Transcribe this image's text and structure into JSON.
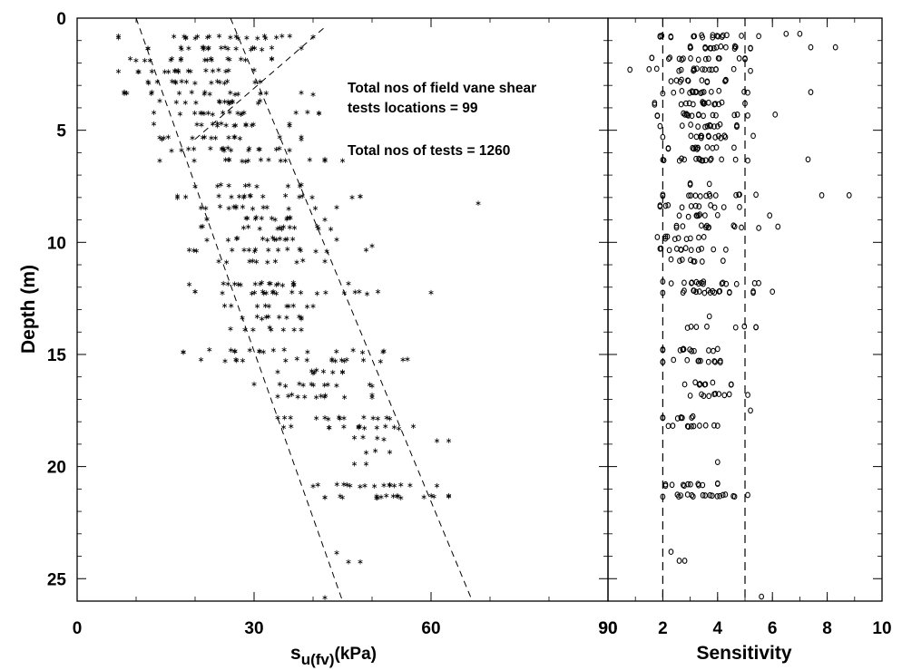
{
  "chart_data": [
    {
      "type": "scatter",
      "panel": "left",
      "xlabel": "s",
      "xlabel_sub": "u(fv)",
      "xlabel_unit": "(kPa)",
      "ylabel": "Depth (m)",
      "xlim": [
        0,
        90
      ],
      "ylim": [
        0,
        26
      ],
      "y_inverted": true,
      "x_ticks": [
        0,
        30,
        60,
        90
      ],
      "y_ticks": [
        0,
        5,
        10,
        15,
        20,
        25
      ],
      "marker": "asterisk",
      "grid": false,
      "annotations": [
        "Total nos of field vane shear",
        "tests locations = 99",
        "Total nos of tests = 1260"
      ],
      "trend_lines": [
        {
          "x1": 10,
          "y1": 0,
          "x2": 45,
          "y2": 26,
          "style": "dashed"
        },
        {
          "x1": 26,
          "y1": 0,
          "x2": 67,
          "y2": 26,
          "style": "dashed"
        },
        {
          "x1": 20,
          "y1": 5.4,
          "x2": 42,
          "y2": 0.4,
          "style": "dashed"
        }
      ],
      "levels": [
        {
          "depth": 0.8,
          "min": 7,
          "max": 40,
          "count": 22
        },
        {
          "depth": 1.3,
          "min": 12,
          "max": 38,
          "count": 20
        },
        {
          "depth": 1.8,
          "min": 9,
          "max": 33,
          "count": 18
        },
        {
          "depth": 2.3,
          "min": 7,
          "max": 30,
          "count": 18
        },
        {
          "depth": 2.8,
          "min": 12,
          "max": 31,
          "count": 16
        },
        {
          "depth": 3.3,
          "min": 8,
          "max": 40,
          "count": 18
        },
        {
          "depth": 3.7,
          "min": 14,
          "max": 31,
          "count": 14
        },
        {
          "depth": 4.2,
          "min": 13,
          "max": 41,
          "count": 18
        },
        {
          "depth": 4.7,
          "min": 13,
          "max": 36,
          "count": 16
        },
        {
          "depth": 5.3,
          "min": 14,
          "max": 38,
          "count": 16
        },
        {
          "depth": 5.8,
          "min": 16,
          "max": 36,
          "count": 18
        },
        {
          "depth": 6.3,
          "min": 14,
          "max": 42,
          "count": 16
        },
        {
          "depth": 7.4,
          "min": 20,
          "max": 38,
          "count": 10
        },
        {
          "depth": 7.9,
          "min": 17,
          "max": 48,
          "count": 18
        },
        {
          "depth": 8.4,
          "min": 21,
          "max": 44,
          "count": 14
        },
        {
          "depth": 8.9,
          "min": 22,
          "max": 42,
          "count": 14
        },
        {
          "depth": 9.3,
          "min": 21,
          "max": 43,
          "count": 14
        },
        {
          "depth": 9.8,
          "min": 22,
          "max": 44,
          "count": 14
        },
        {
          "depth": 10.3,
          "min": 19,
          "max": 49,
          "count": 16
        },
        {
          "depth": 10.8,
          "min": 24,
          "max": 42,
          "count": 10
        },
        {
          "depth": 11.8,
          "min": 19,
          "max": 46,
          "count": 18
        },
        {
          "depth": 12.2,
          "min": 20,
          "max": 51,
          "count": 20
        },
        {
          "depth": 12.8,
          "min": 25,
          "max": 40,
          "count": 10
        },
        {
          "depth": 13.3,
          "min": 28,
          "max": 38,
          "count": 10
        },
        {
          "depth": 13.8,
          "min": 26,
          "max": 38,
          "count": 8
        },
        {
          "depth": 14.8,
          "min": 18,
          "max": 52,
          "count": 18
        },
        {
          "depth": 15.2,
          "min": 21,
          "max": 56,
          "count": 18
        },
        {
          "depth": 15.7,
          "min": 34,
          "max": 45,
          "count": 8
        },
        {
          "depth": 16.3,
          "min": 30,
          "max": 50,
          "count": 12
        },
        {
          "depth": 16.8,
          "min": 34,
          "max": 50,
          "count": 12
        },
        {
          "depth": 17.8,
          "min": 34,
          "max": 53,
          "count": 14
        },
        {
          "depth": 18.2,
          "min": 35,
          "max": 57,
          "count": 14
        },
        {
          "depth": 18.7,
          "min": 47,
          "max": 52,
          "count": 4
        },
        {
          "depth": 19.3,
          "min": 49,
          "max": 53,
          "count": 3
        },
        {
          "depth": 19.8,
          "min": 47,
          "max": 49,
          "count": 2
        },
        {
          "depth": 20.8,
          "min": 40,
          "max": 61,
          "count": 16
        },
        {
          "depth": 21.3,
          "min": 42,
          "max": 63,
          "count": 18
        }
      ],
      "outliers": [
        {
          "x": 68,
          "y": 8.2
        },
        {
          "x": 60,
          "y": 12.2
        },
        {
          "x": 61,
          "y": 18.8
        },
        {
          "x": 63,
          "y": 18.8
        },
        {
          "x": 44,
          "y": 23.8
        },
        {
          "x": 46,
          "y": 24.2
        },
        {
          "x": 48,
          "y": 24.2
        },
        {
          "x": 42,
          "y": 25.8
        },
        {
          "x": 45,
          "y": 6.3
        },
        {
          "x": 50,
          "y": 10.1
        },
        {
          "x": 40,
          "y": 15.8
        }
      ]
    },
    {
      "type": "scatter",
      "panel": "right",
      "xlabel": "Sensitivity",
      "xlim": [
        0,
        10
      ],
      "ylim": [
        0,
        26
      ],
      "y_inverted": true,
      "x_ticks": [
        0,
        2,
        4,
        6,
        8,
        10
      ],
      "x_tick_labels": [
        "90",
        "2",
        "4",
        "6",
        "8",
        "10"
      ],
      "marker": "open-circle",
      "grid": false,
      "reference_lines": [
        {
          "x": 2,
          "style": "dashed"
        },
        {
          "x": 5,
          "style": "dashed"
        }
      ],
      "levels": [
        {
          "depth": 0.8,
          "min": 1.9,
          "max": 5.5,
          "count": 18
        },
        {
          "depth": 1.3,
          "min": 3.0,
          "max": 5.2,
          "count": 16
        },
        {
          "depth": 1.8,
          "min": 1.6,
          "max": 5.0,
          "count": 16
        },
        {
          "depth": 2.3,
          "min": 1.5,
          "max": 5.2,
          "count": 16
        },
        {
          "depth": 2.8,
          "min": 2.3,
          "max": 4.3,
          "count": 12
        },
        {
          "depth": 3.3,
          "min": 2.0,
          "max": 5.1,
          "count": 16
        },
        {
          "depth": 3.8,
          "min": 1.7,
          "max": 5.0,
          "count": 16
        },
        {
          "depth": 4.3,
          "min": 1.8,
          "max": 5.1,
          "count": 16
        },
        {
          "depth": 4.8,
          "min": 1.9,
          "max": 4.7,
          "count": 14
        },
        {
          "depth": 5.3,
          "min": 2.0,
          "max": 5.3,
          "count": 14
        },
        {
          "depth": 5.8,
          "min": 2.2,
          "max": 4.6,
          "count": 12
        },
        {
          "depth": 6.3,
          "min": 2.0,
          "max": 5.1,
          "count": 16
        },
        {
          "depth": 7.4,
          "min": 3.0,
          "max": 3.7,
          "count": 3
        },
        {
          "depth": 7.9,
          "min": 2.0,
          "max": 5.4,
          "count": 14
        },
        {
          "depth": 8.4,
          "min": 1.9,
          "max": 4.8,
          "count": 12
        },
        {
          "depth": 8.8,
          "min": 2.6,
          "max": 4.0,
          "count": 8
        },
        {
          "depth": 9.3,
          "min": 2.5,
          "max": 5.5,
          "count": 12
        },
        {
          "depth": 9.8,
          "min": 1.8,
          "max": 3.5,
          "count": 10
        },
        {
          "depth": 10.3,
          "min": 1.9,
          "max": 4.3,
          "count": 12
        },
        {
          "depth": 10.8,
          "min": 2.3,
          "max": 4.2,
          "count": 8
        },
        {
          "depth": 11.8,
          "min": 2.0,
          "max": 5.5,
          "count": 16
        },
        {
          "depth": 12.2,
          "min": 2.0,
          "max": 5.3,
          "count": 18
        },
        {
          "depth": 13.8,
          "min": 2.9,
          "max": 5.4,
          "count": 8
        },
        {
          "depth": 14.8,
          "min": 2.0,
          "max": 4.0,
          "count": 12
        },
        {
          "depth": 15.3,
          "min": 2.0,
          "max": 4.1,
          "count": 12
        },
        {
          "depth": 16.3,
          "min": 2.8,
          "max": 4.5,
          "count": 10
        },
        {
          "depth": 16.8,
          "min": 3.0,
          "max": 5.1,
          "count": 10
        },
        {
          "depth": 17.8,
          "min": 2.0,
          "max": 3.1,
          "count": 8
        },
        {
          "depth": 18.2,
          "min": 2.2,
          "max": 4.0,
          "count": 10
        },
        {
          "depth": 20.8,
          "min": 2.1,
          "max": 4.0,
          "count": 12
        },
        {
          "depth": 21.3,
          "min": 2.0,
          "max": 5.1,
          "count": 18
        }
      ],
      "outliers": [
        {
          "x": 6.5,
          "y": 0.7
        },
        {
          "x": 7.0,
          "y": 0.7
        },
        {
          "x": 7.4,
          "y": 1.3
        },
        {
          "x": 8.3,
          "y": 1.3
        },
        {
          "x": 0.8,
          "y": 2.3
        },
        {
          "x": 7.4,
          "y": 3.3
        },
        {
          "x": 6.1,
          "y": 4.3
        },
        {
          "x": 7.3,
          "y": 6.3
        },
        {
          "x": 7.8,
          "y": 7.9
        },
        {
          "x": 8.8,
          "y": 7.9
        },
        {
          "x": 5.9,
          "y": 8.8
        },
        {
          "x": 6.2,
          "y": 9.3
        },
        {
          "x": 6.0,
          "y": 12.2
        },
        {
          "x": 3.7,
          "y": 13.3
        },
        {
          "x": 4.0,
          "y": 19.8
        },
        {
          "x": 2.3,
          "y": 23.8
        },
        {
          "x": 2.6,
          "y": 24.2
        },
        {
          "x": 2.8,
          "y": 24.2
        },
        {
          "x": 5.6,
          "y": 25.8
        },
        {
          "x": 5.2,
          "y": 17.5
        }
      ]
    }
  ]
}
